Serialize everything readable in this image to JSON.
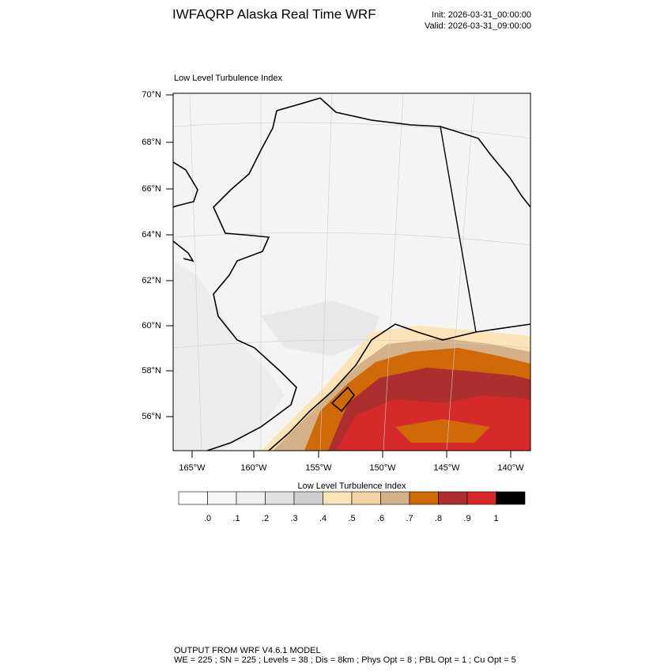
{
  "header": {
    "title": "IWFAQRP Alaska Real Time WRF",
    "init": "Init: 2026-03-31_00:00:00",
    "valid": "Valid: 2026-03-31_09:00:00"
  },
  "map": {
    "subtitle": "Low Level Turbulence Index",
    "lat_labels": [
      "70°N",
      "68°N",
      "66°N",
      "64°N",
      "62°N",
      "60°N",
      "58°N",
      "56°N"
    ],
    "lon_labels": [
      "165°W",
      "160°W",
      "155°W",
      "150°W",
      "145°W",
      "140°W"
    ]
  },
  "colorbar": {
    "title": "Low Level Turbulence Index",
    "labels": [
      ".0",
      ".1",
      ".2",
      ".3",
      ".4",
      ".5",
      ".6",
      ".7",
      ".8",
      ".9",
      "1"
    ],
    "colors": [
      "#ffffff",
      "#f7f7f7",
      "#efefef",
      "#e0e0e0",
      "#cfcfcf",
      "#fde4b8",
      "#f3d3a6",
      "#d4b189",
      "#d06a08",
      "#ad2e2e",
      "#d6292a",
      "#000000"
    ]
  },
  "footer": {
    "line1": "OUTPUT FROM WRF V4.6.1 MODEL",
    "line2": "WE = 225 ; SN = 225 ; Levels = 38 ; Dis = 8km ; Phys Opt = 8 ; PBL Opt = 1 ; Cu Opt = 5"
  }
}
